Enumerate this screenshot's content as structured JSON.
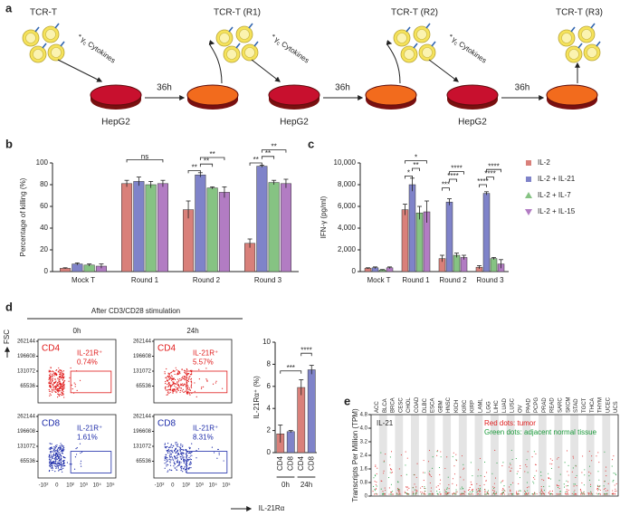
{
  "panel_labels": [
    "a",
    "b",
    "c",
    "d",
    "e"
  ],
  "schematic": {
    "cells": [
      "TCR-T",
      "TCR-T (R1)",
      "TCR-T (R2)",
      "TCR-T (R3)"
    ],
    "target": "HepG2",
    "duration": "36h",
    "cytokine": {
      "prefix": "*",
      "symbol": "γ",
      "sub": "c",
      "word": "Cytokines"
    }
  },
  "flow": {
    "header": "After CD3/CD28 stimulation",
    "columns": [
      "0h",
      "24h"
    ],
    "y_label": "FSC",
    "x_label": "IL-21Rα",
    "yticks": [
      262144,
      196608,
      131072,
      65536
    ],
    "xticks": [
      "-10²",
      "0",
      "10²",
      "10³",
      "10⁴",
      "10⁵"
    ],
    "plots": [
      {
        "population": "CD4",
        "gate": "IL-21R⁺",
        "percent": "0.74%"
      },
      {
        "population": "CD4",
        "gate": "IL-21R⁺",
        "percent": "5.57%"
      },
      {
        "population": "CD8",
        "gate": "IL-21R⁺",
        "percent": "1.61%"
      },
      {
        "population": "CD8",
        "gate": "IL-21R⁺",
        "percent": "8.31%"
      }
    ]
  },
  "chart_data": [
    {
      "type": "bar",
      "y_label": "Percentage of killing (%)",
      "categories": [
        "Mock T",
        "Round 1",
        "Round 2",
        "Round 3"
      ],
      "series": [
        {
          "name": "IL-2",
          "color": "#d9807a",
          "values": [
            3,
            81,
            57,
            26
          ],
          "errors": [
            0.5,
            3,
            8,
            4
          ]
        },
        {
          "name": "IL-2 + IL-21",
          "color": "#7f83c9",
          "values": [
            7,
            83,
            89,
            97
          ],
          "errors": [
            1,
            4,
            2,
            1
          ]
        },
        {
          "name": "IL-2 + IL-7",
          "color": "#86c383",
          "values": [
            6,
            80,
            77,
            82
          ],
          "errors": [
            1,
            3,
            1,
            2
          ]
        },
        {
          "name": "IL-2 + IL-15",
          "color": "#b27cc3",
          "values": [
            5,
            81,
            73,
            81
          ],
          "errors": [
            2,
            3,
            5,
            4
          ]
        }
      ],
      "ylim": [
        0,
        100
      ],
      "yticks": [
        0,
        20,
        40,
        60,
        80,
        100
      ],
      "annotations": [
        "ns",
        "**",
        "**",
        "**",
        "**",
        "**",
        "**"
      ]
    },
    {
      "type": "bar",
      "y_label": "IFN-γ (pg/ml)",
      "categories": [
        "Mock T",
        "Round 1",
        "Round 2",
        "Round 3"
      ],
      "series": [
        {
          "name": "IL-2",
          "color": "#d9807a",
          "values": [
            300,
            5700,
            1200,
            400
          ],
          "errors": [
            50,
            500,
            300,
            150
          ]
        },
        {
          "name": "IL-2 + IL-21",
          "color": "#7f83c9",
          "values": [
            350,
            8000,
            6400,
            7200
          ],
          "errors": [
            80,
            600,
            300,
            150
          ]
        },
        {
          "name": "IL-2 + IL-7",
          "color": "#86c383",
          "values": [
            150,
            5400,
            1500,
            1200
          ],
          "errors": [
            40,
            600,
            200,
            100
          ]
        },
        {
          "name": "IL-2 + IL-15",
          "color": "#b27cc3",
          "values": [
            350,
            5500,
            1300,
            700
          ],
          "errors": [
            80,
            1000,
            200,
            400
          ]
        }
      ],
      "ylim": [
        0,
        10000
      ],
      "yticks": [
        0,
        {
          "value": 2000,
          "label": "2,000"
        },
        {
          "value": 4000,
          "label": "4,000"
        },
        {
          "value": 6000,
          "label": "6,000"
        },
        {
          "value": 8000,
          "label": "8,000"
        },
        {
          "value": 10000,
          "label": "10,000"
        }
      ],
      "legend": "right",
      "annotations": [
        "*",
        "**",
        "*",
        "***",
        "****",
        "****",
        "****",
        "****",
        "****"
      ]
    },
    {
      "type": "bar",
      "y_label": "IL-21Rα⁺ (%)",
      "categories": [
        "CD4",
        "CD8",
        "CD4",
        "CD8"
      ],
      "groups": [
        "0h",
        "24h"
      ],
      "colors": [
        "#d9807a",
        "#7f83c9",
        "#d9807a",
        "#7f83c9"
      ],
      "values": [
        1.7,
        1.9,
        5.9,
        7.5
      ],
      "errors": [
        0.8,
        0.1,
        0.7,
        0.4
      ],
      "ylim": [
        0,
        10
      ],
      "yticks": [
        0,
        2,
        4,
        6,
        8,
        10
      ],
      "annotations": [
        "***",
        "****"
      ]
    },
    {
      "type": "strip",
      "title": "IL-21",
      "y_label": "Transcripts Per Million (TPM)",
      "categories": [
        "ACC",
        "BLCA",
        "BRCA",
        "CESC",
        "CHOL",
        "COAD",
        "DLBC",
        "ESCA",
        "GBM",
        "HNSC",
        "KICH",
        "KIRC",
        "KIRP",
        "LAML",
        "LGG",
        "LIHC",
        "LUAD",
        "LUSC",
        "OV",
        "PAAD",
        "PCPG",
        "PRAD",
        "READ",
        "SARC",
        "SKCM",
        "STAD",
        "TGCT",
        "THCA",
        "THYM",
        "UCEC",
        "UCS"
      ],
      "ylim": [
        0,
        4.8
      ],
      "yticks": [
        0,
        0.8,
        1.6,
        2.4,
        3.2,
        {
          "value": 4,
          "label": "4.0"
        },
        4.8
      ],
      "notes": [
        "Red dots: tumor",
        "Green dots: adjacent normal tissue"
      ]
    }
  ]
}
